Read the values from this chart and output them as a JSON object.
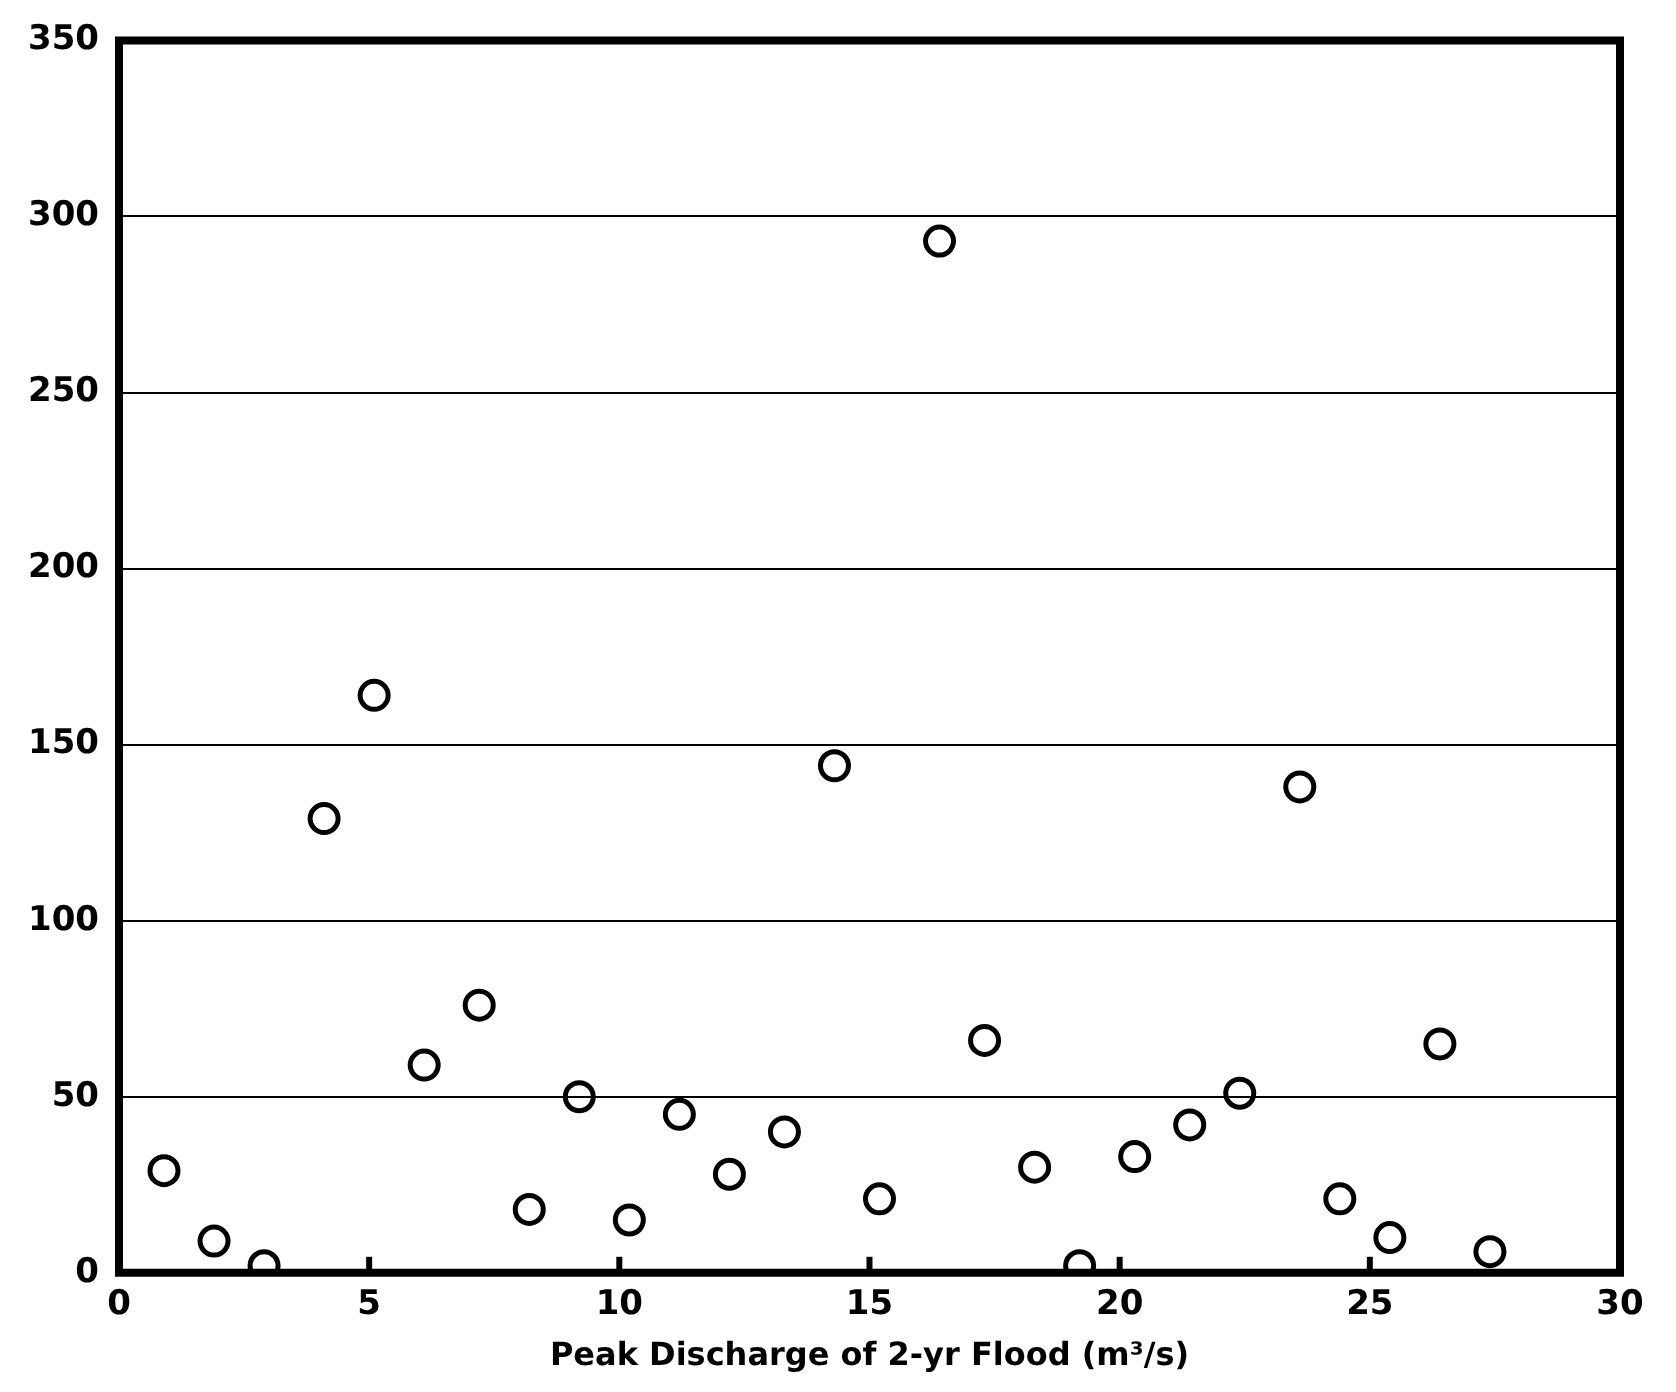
{
  "chart_data": {
    "type": "scatter",
    "xlabel": "Peak Discharge of 2-yr Flood (m³/s)",
    "x": [
      0.9,
      1.9,
      2.9,
      4.1,
      5.1,
      6.1,
      7.2,
      8.2,
      9.2,
      10.2,
      11.2,
      12.2,
      13.3,
      14.3,
      15.2,
      16.4,
      17.3,
      18.3,
      19.2,
      20.3,
      21.4,
      22.4,
      23.6,
      24.4,
      25.4,
      26.4,
      27.4
    ],
    "series": [
      {
        "color": "#000000",
        "values": [
          29,
          9,
          2,
          129,
          164,
          59,
          76,
          18,
          50,
          15,
          45,
          28,
          40,
          144,
          21,
          293,
          66,
          30,
          2,
          33,
          42,
          51,
          138,
          21,
          10,
          65,
          6
        ]
      }
    ],
    "xlim": [
      0,
      30
    ],
    "xticks": [
      0,
      5,
      10,
      15,
      20,
      25,
      30
    ],
    "ylim": [
      0,
      350
    ],
    "yticks": [
      0,
      50,
      100,
      150,
      200,
      250,
      300,
      350
    ],
    "grid": "y",
    "legend": false,
    "marker": "circle"
  }
}
